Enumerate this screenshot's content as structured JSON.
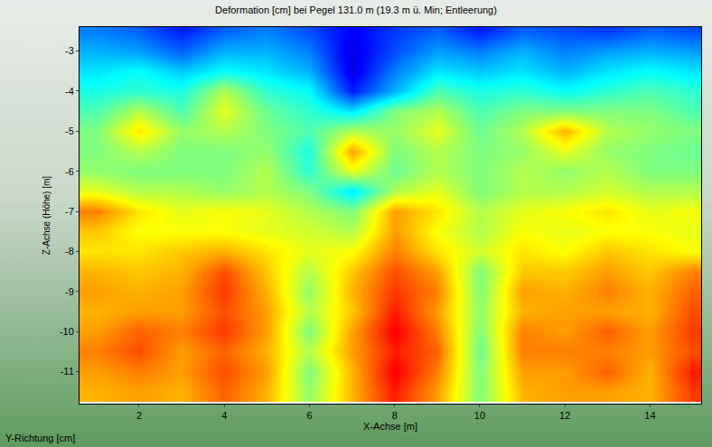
{
  "chart_data": {
    "type": "heatmap",
    "title": "Deformation [cm] bei Pegel 131.0 m (19.3 m ü. Min; Entleerung)",
    "x_label": "X-Achse [m]",
    "y_label": "Z-Achse (Höhe) [m]",
    "annotations": [
      "Y-Richtung [cm]"
    ],
    "xlim": [
      0.6,
      15.2
    ],
    "ylim": [
      -11.8,
      -2.4
    ],
    "xticks": [
      2,
      4,
      6,
      8,
      10,
      12,
      14
    ],
    "yticks": [
      -3,
      -4,
      -5,
      -6,
      -7,
      -8,
      -9,
      -10,
      -11
    ],
    "grid": false,
    "zlim": [
      0,
      1
    ],
    "x": [
      1,
      2,
      3,
      4,
      5,
      6,
      7,
      8,
      9,
      10,
      11,
      12,
      13,
      14,
      15
    ],
    "y": [
      -2.5,
      -3,
      -3.5,
      -4,
      -4.5,
      -5,
      -5.5,
      -6,
      -6.5,
      -7,
      -7.5,
      -8,
      -8.5,
      -9,
      -9.5,
      -10,
      -10.5,
      -11,
      -11.5
    ],
    "z": [
      [
        0.25,
        0.22,
        0.15,
        0.22,
        0.25,
        0.2,
        0.12,
        0.18,
        0.22,
        0.15,
        0.22,
        0.2,
        0.18,
        0.22,
        0.2
      ],
      [
        0.3,
        0.28,
        0.22,
        0.3,
        0.3,
        0.25,
        0.1,
        0.2,
        0.28,
        0.25,
        0.3,
        0.25,
        0.28,
        0.3,
        0.28
      ],
      [
        0.35,
        0.38,
        0.32,
        0.38,
        0.35,
        0.3,
        0.1,
        0.25,
        0.35,
        0.32,
        0.35,
        0.3,
        0.35,
        0.38,
        0.35
      ],
      [
        0.4,
        0.42,
        0.4,
        0.55,
        0.42,
        0.38,
        0.15,
        0.3,
        0.45,
        0.4,
        0.42,
        0.38,
        0.42,
        0.45,
        0.42
      ],
      [
        0.45,
        0.55,
        0.45,
        0.6,
        0.48,
        0.42,
        0.35,
        0.5,
        0.55,
        0.45,
        0.5,
        0.5,
        0.5,
        0.5,
        0.45
      ],
      [
        0.5,
        0.65,
        0.52,
        0.55,
        0.5,
        0.45,
        0.55,
        0.52,
        0.6,
        0.48,
        0.55,
        0.7,
        0.55,
        0.52,
        0.5
      ],
      [
        0.5,
        0.55,
        0.5,
        0.5,
        0.52,
        0.4,
        0.72,
        0.5,
        0.55,
        0.5,
        0.52,
        0.6,
        0.52,
        0.5,
        0.48
      ],
      [
        0.52,
        0.5,
        0.5,
        0.5,
        0.55,
        0.42,
        0.6,
        0.48,
        0.55,
        0.5,
        0.55,
        0.52,
        0.55,
        0.5,
        0.5
      ],
      [
        0.6,
        0.55,
        0.55,
        0.52,
        0.55,
        0.5,
        0.35,
        0.55,
        0.6,
        0.5,
        0.55,
        0.55,
        0.58,
        0.55,
        0.55
      ],
      [
        0.75,
        0.65,
        0.6,
        0.62,
        0.6,
        0.55,
        0.5,
        0.72,
        0.65,
        0.55,
        0.6,
        0.62,
        0.65,
        0.6,
        0.62
      ],
      [
        0.68,
        0.62,
        0.62,
        0.62,
        0.6,
        0.58,
        0.55,
        0.72,
        0.62,
        0.55,
        0.62,
        0.6,
        0.62,
        0.62,
        0.6
      ],
      [
        0.65,
        0.65,
        0.68,
        0.7,
        0.65,
        0.6,
        0.62,
        0.75,
        0.65,
        0.58,
        0.65,
        0.62,
        0.68,
        0.65,
        0.62
      ],
      [
        0.7,
        0.68,
        0.7,
        0.8,
        0.68,
        0.55,
        0.68,
        0.8,
        0.72,
        0.5,
        0.68,
        0.68,
        0.72,
        0.68,
        0.75
      ],
      [
        0.72,
        0.7,
        0.72,
        0.82,
        0.7,
        0.52,
        0.7,
        0.82,
        0.75,
        0.5,
        0.72,
        0.7,
        0.75,
        0.7,
        0.78
      ],
      [
        0.7,
        0.72,
        0.72,
        0.8,
        0.72,
        0.55,
        0.68,
        0.85,
        0.72,
        0.52,
        0.7,
        0.72,
        0.72,
        0.7,
        0.8
      ],
      [
        0.72,
        0.78,
        0.75,
        0.82,
        0.72,
        0.5,
        0.72,
        0.88,
        0.75,
        0.5,
        0.75,
        0.72,
        0.78,
        0.72,
        0.82
      ],
      [
        0.75,
        0.8,
        0.72,
        0.78,
        0.7,
        0.55,
        0.72,
        0.85,
        0.78,
        0.48,
        0.75,
        0.75,
        0.75,
        0.72,
        0.8
      ],
      [
        0.72,
        0.75,
        0.72,
        0.8,
        0.72,
        0.5,
        0.7,
        0.88,
        0.75,
        0.5,
        0.72,
        0.72,
        0.78,
        0.7,
        0.85
      ],
      [
        0.7,
        0.72,
        0.7,
        0.78,
        0.7,
        0.52,
        0.7,
        0.85,
        0.72,
        0.5,
        0.7,
        0.72,
        0.72,
        0.7,
        0.82
      ]
    ]
  }
}
